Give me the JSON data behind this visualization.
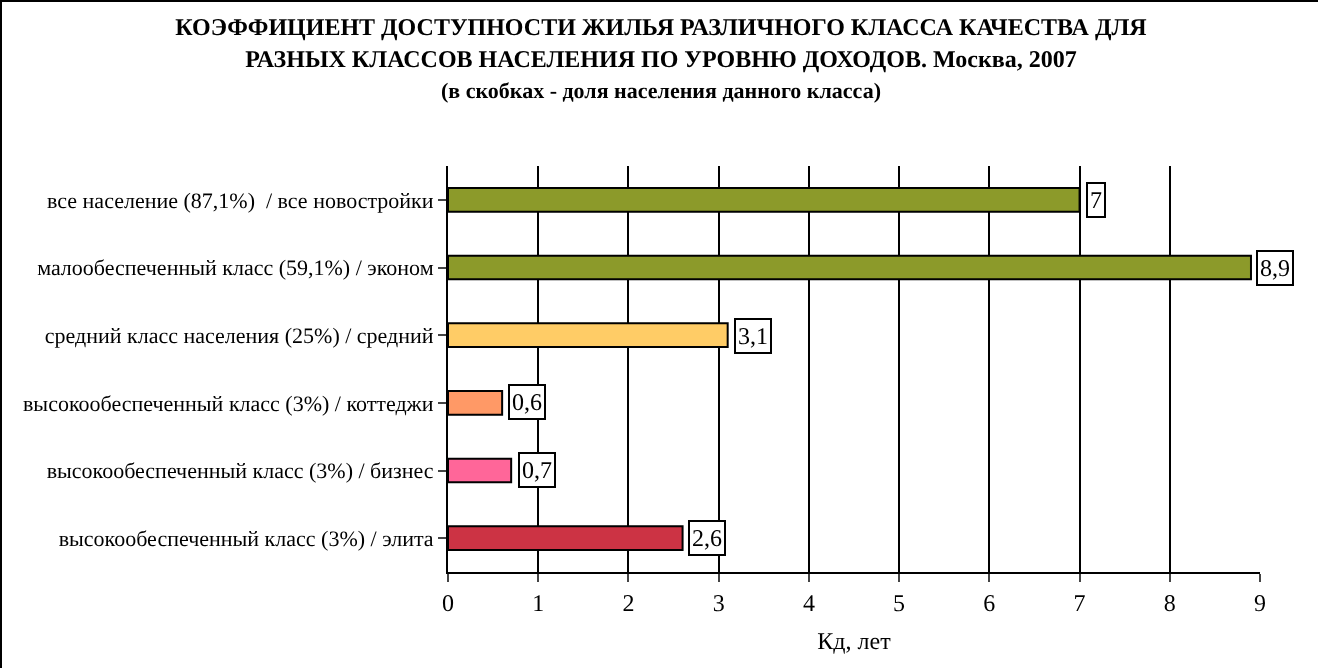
{
  "chart_data": {
    "type": "bar",
    "orientation": "horizontal",
    "title": "КОЭФФИЦИЕНТ ДОСТУПНОСТИ ЖИЛЬЯ РАЗЛИЧНОГО КЛАССА КАЧЕСТВА ДЛЯ РАЗНЫХ КЛАССОВ НАСЕЛЕНИЯ ПО УРОВНЮ ДОХОДОВ. Москва, 2007",
    "subtitle": "(в скобках - доля населения данного класса)",
    "xlabel": "Кд, лет",
    "categories": [
      "все население (87,1%)  / все новостройки",
      "малообеспеченный класс (59,1%) / эконом",
      "средний класс населения (25%) / средний",
      "высокообеспеченный класс (3%) / коттеджи",
      "высокообеспеченный класс (3%) / бизнес",
      "высокообеспеченный класс (3%) / элита"
    ],
    "values": [
      7,
      8.9,
      3.1,
      0.6,
      0.7,
      2.6
    ],
    "value_labels": [
      "7",
      "8,9",
      "3,1",
      "0,6",
      "0,7",
      "2,6"
    ],
    "colors": [
      "#8c9a2a",
      "#8c9a2a",
      "#ffcc66",
      "#ff9966",
      "#ff6699",
      "#cc3344"
    ],
    "xlim": [
      0,
      9
    ],
    "xticks": [
      0,
      1,
      2,
      3,
      4,
      5,
      6,
      7,
      8,
      9
    ],
    "grid": "x",
    "legend": false
  }
}
